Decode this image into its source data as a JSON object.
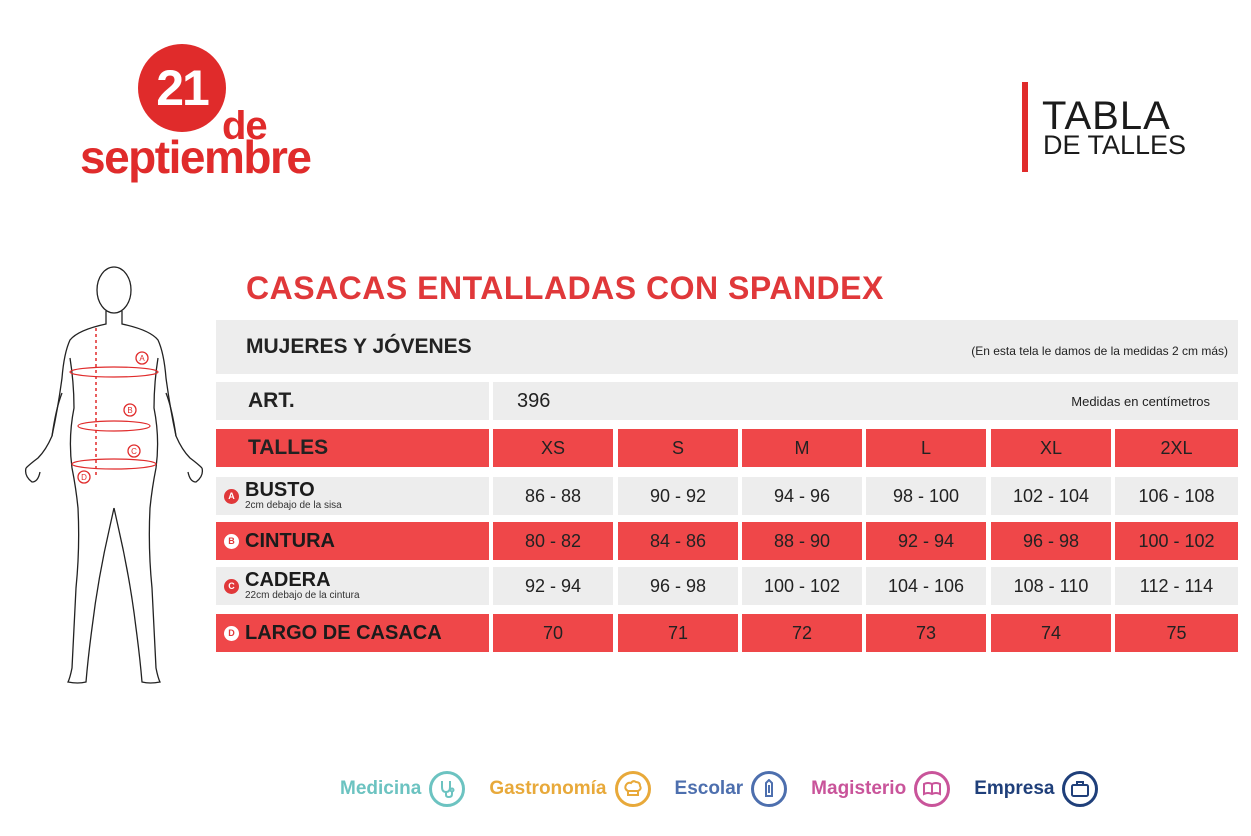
{
  "logo": {
    "number": "21",
    "de": "de",
    "month": "septiembre"
  },
  "title": {
    "line1": "TABLA",
    "line2": "DE TALLES"
  },
  "heading": "CASACAS ENTALLADAS CON SPANDEX",
  "group": {
    "label": "MUJERES Y JÓVENES",
    "note": "(En esta tela le damos de la medidas 2 cm más)"
  },
  "art": {
    "label": "ART.",
    "value": "396",
    "units": "Medidas en centímetros"
  },
  "table": {
    "header_label": "TALLES",
    "sizes": [
      "XS",
      "S",
      "M",
      "L",
      "XL",
      "2XL"
    ],
    "rows": [
      {
        "marker": "A",
        "label": "BUSTO",
        "sub": "2cm debajo de la sisa",
        "values": [
          "86 - 88",
          "90 - 92",
          "94 - 96",
          "98 - 100",
          "102 - 104",
          "106 - 108"
        ]
      },
      {
        "marker": "B",
        "label": "CINTURA",
        "sub": "",
        "values": [
          "80 - 82",
          "84 - 86",
          "88 - 90",
          "92 - 94",
          "96 - 98",
          "100 - 102"
        ]
      },
      {
        "marker": "C",
        "label": "CADERA",
        "sub": "22cm debajo de la cintura",
        "values": [
          "92 - 94",
          "96 - 98",
          "100 - 102",
          "104 - 106",
          "108 - 110",
          "112 - 114"
        ]
      },
      {
        "marker": "D",
        "label": "LARGO DE CASACA",
        "sub": "",
        "values": [
          "70",
          "71",
          "72",
          "73",
          "74",
          "75"
        ]
      }
    ]
  },
  "figure_markers": [
    "A",
    "B",
    "C",
    "D"
  ],
  "footer": [
    {
      "label": "Medicina",
      "color": "#6cc3c1",
      "icon": "stethoscope-icon"
    },
    {
      "label": "Gastronomía",
      "color": "#e8a93a",
      "icon": "chef-hat-icon"
    },
    {
      "label": "Escolar",
      "color": "#4d6fae",
      "icon": "pencil-icon"
    },
    {
      "label": "Magisterio",
      "color": "#c9549a",
      "icon": "book-icon"
    },
    {
      "label": "Empresa",
      "color": "#1f3f7a",
      "icon": "briefcase-icon"
    }
  ],
  "colors": {
    "accent": "#e02b2b",
    "row_red": "#ef4749",
    "row_gray": "#ededed"
  }
}
